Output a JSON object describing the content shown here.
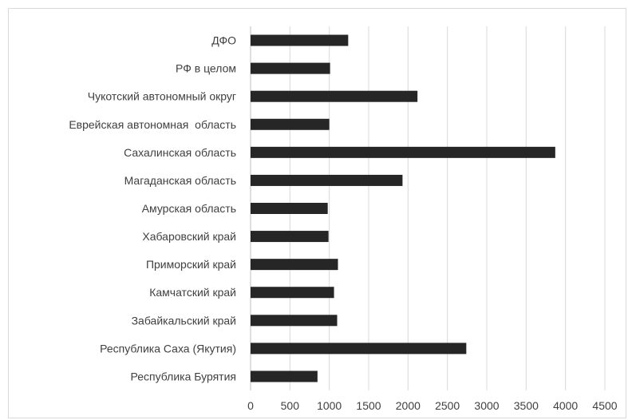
{
  "chart_data": {
    "type": "bar",
    "orientation": "horizontal",
    "categories": [
      "ДФО",
      "РФ в целом",
      "Чукотский автономный округ",
      "Еврейская автономная  область",
      "Сахалинская область",
      "Магаданская область",
      "Амурская область",
      "Хабаровский край",
      "Приморский край",
      "Камчатский край",
      "Забайкальский край",
      "Республика Саха (Якутия)",
      "Республика Бурятия"
    ],
    "values": [
      1240,
      1010,
      2120,
      1000,
      3870,
      1930,
      980,
      990,
      1110,
      1060,
      1100,
      2740,
      850
    ],
    "xlim": [
      0,
      4500
    ],
    "x_ticks": [
      "0",
      "500",
      "1000",
      "1500",
      "2000",
      "2500",
      "3000",
      "3500",
      "4000",
      "4500"
    ],
    "title": "",
    "xlabel": "",
    "ylabel": "",
    "grid": "vertical",
    "legend": "none",
    "colors": {
      "bar": "#262626",
      "grid": "#d9d9d9",
      "text": "#404040"
    }
  }
}
